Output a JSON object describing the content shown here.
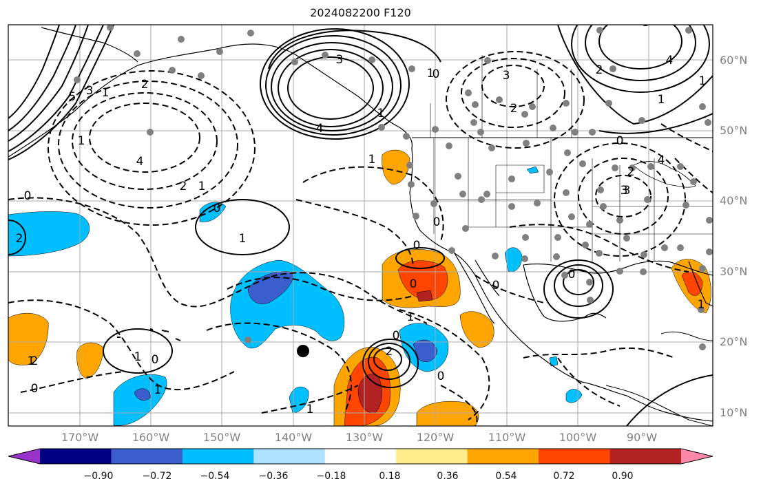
{
  "title": "2024082200 F120",
  "latitude_labels": [
    "60°N",
    "50°N",
    "40°N",
    "30°N",
    "20°N",
    "10°N"
  ],
  "longitude_labels": [
    "170°W",
    "160°W",
    "150°W",
    "140°W",
    "130°W",
    "120°W",
    "110°W",
    "100°W",
    "90°W"
  ],
  "colorbar": {
    "tick_labels": [
      "−0.90",
      "−0.72",
      "−0.54",
      "−0.36",
      "−0.18",
      "0.18",
      "0.36",
      "0.54",
      "0.72",
      "0.90"
    ],
    "colors": [
      "#9933cc",
      "#000080",
      "#3a5fcd",
      "#00bfff",
      "#aee0ff",
      "#ffffff",
      "#ffec8b",
      "#ffa500",
      "#ff4500",
      "#b22222",
      "#ff88aa"
    ]
  },
  "contour_labels": [
    "3",
    "4",
    "3",
    "2",
    "1",
    "0",
    "4",
    "3",
    "2",
    "1",
    "4",
    "3",
    "2",
    "0",
    "1",
    "1",
    "2",
    "1",
    "0",
    "1",
    "1",
    "2",
    "0",
    "1",
    "2",
    "3",
    "2",
    "1",
    "0",
    "0",
    "1",
    "0",
    "1",
    "0",
    "2",
    "1",
    "1",
    "0",
    "0",
    "0",
    "0",
    "0",
    "3",
    "4",
    "5",
    "1",
    "1"
  ],
  "marker": "black-dot"
}
